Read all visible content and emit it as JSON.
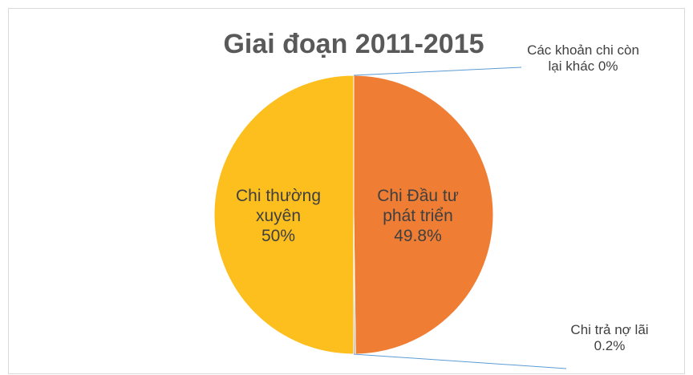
{
  "chart_data": {
    "type": "pie",
    "title": "Giai đoạn 2011-2015",
    "categories": [
      "Các khoản chi còn lại khác",
      "Chi Đầu tư phát triển",
      "Chi trả nợ lãi",
      "Chi thường xuyên"
    ],
    "values": [
      0,
      49.8,
      0.2,
      50
    ],
    "value_labels": [
      "0%",
      "49.8%",
      "0.2%",
      "50%"
    ],
    "colors": [
      "#4472c4",
      "#ef7d33",
      "#a5a5a5",
      "#fdbf1e"
    ]
  }
}
